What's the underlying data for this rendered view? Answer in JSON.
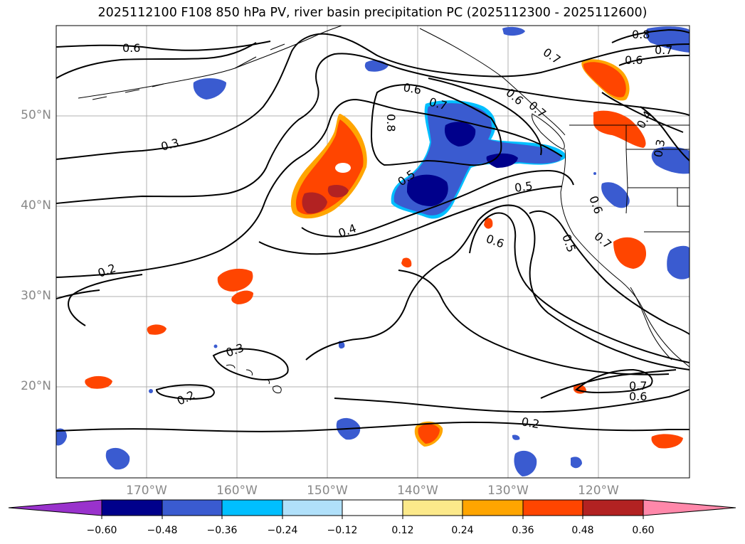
{
  "title": "2025112100 F108 850 hPa PV, river basin precipitation PC (2025112300 - 2025112600)",
  "lat_labels": [
    "50°N",
    "40°N",
    "30°N",
    "20°N"
  ],
  "lon_labels": [
    "170°W",
    "160°W",
    "150°W",
    "140°W",
    "130°W",
    "120°W"
  ],
  "contour_labels": [
    "0.6",
    "0.7",
    "0.8",
    "0.6",
    "0.7",
    "0.6",
    "0.7",
    "0.8",
    "0.6",
    "0.7",
    "0.4",
    "0.3",
    "0.3",
    "0.5",
    "0.5",
    "0.4",
    "0.6",
    "0.6",
    "0.7",
    "0.5",
    "0.2",
    "0.3",
    "0.2",
    "0.7",
    "0.6",
    "0.2"
  ],
  "colorbar": {
    "ticks": [
      "−0.60",
      "−0.48",
      "−0.36",
      "−0.24",
      "−0.12",
      "0.12",
      "0.24",
      "0.36",
      "0.48",
      "0.60"
    ],
    "colors": [
      "#9932cc",
      "#00008b",
      "#3a5bd0",
      "#00bfff",
      "#b0e0fa",
      "#ffffff",
      "#fce98a",
      "#ffa500",
      "#ff4500",
      "#b22222",
      "#ff88aa"
    ]
  },
  "legend_colors": {
    "land": "#ffffff",
    "coast": "#000000",
    "grid": "#b0b0b0"
  }
}
